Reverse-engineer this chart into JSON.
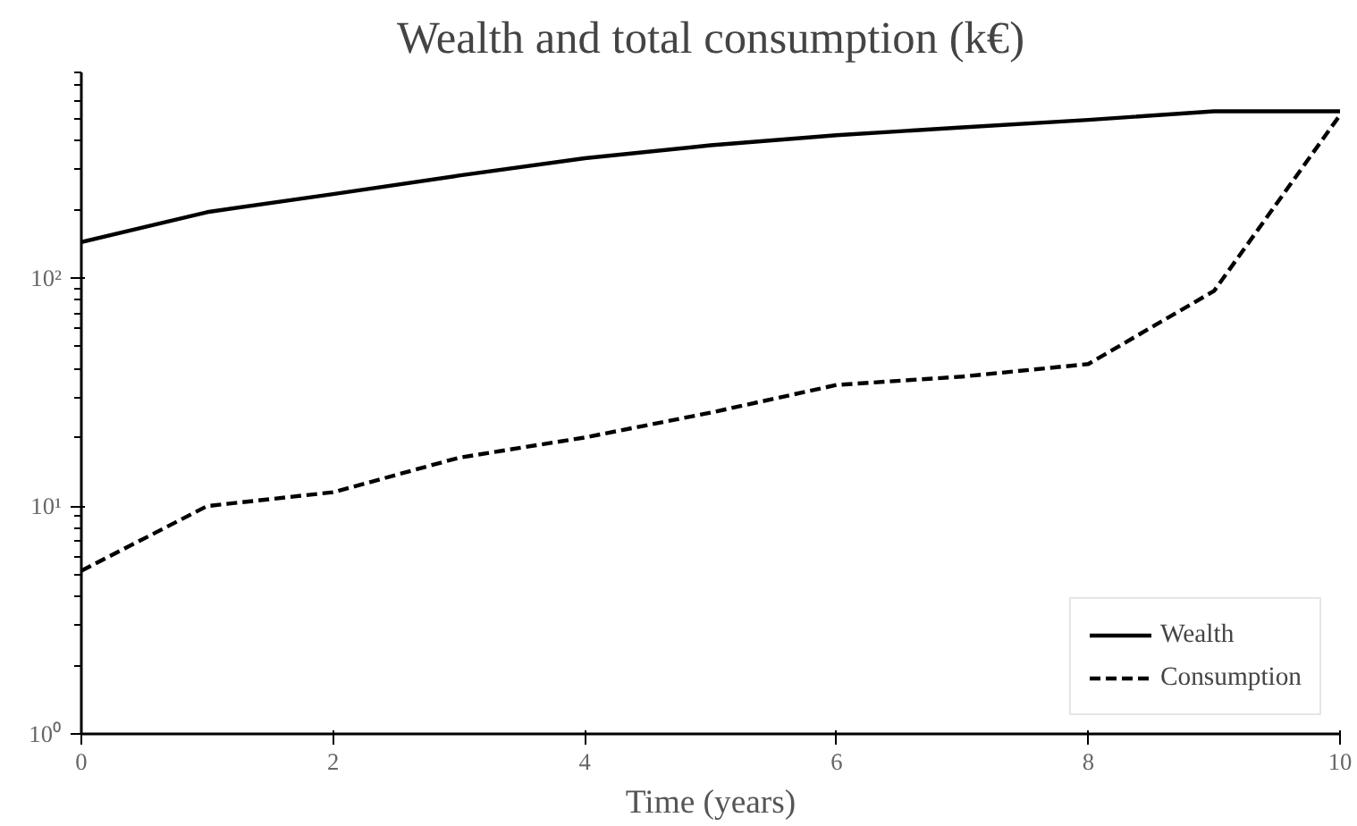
{
  "chart_data": {
    "type": "line",
    "title": "Wealth and total consumption (k€)",
    "xlabel": "Time (years)",
    "x": [
      0,
      1,
      2,
      3,
      4,
      5,
      6,
      7,
      8,
      9,
      10
    ],
    "series": [
      {
        "name": "Wealth",
        "color": "#000000",
        "line_style": "solid",
        "values": [
          144,
          195,
          234,
          282,
          336,
          383,
          424,
          459,
          495,
          540,
          540
        ]
      },
      {
        "name": "Consumption",
        "color": "#000000",
        "line_style": "dashed",
        "values": [
          5.2,
          10,
          11.5,
          16.3,
          20,
          25.7,
          34,
          37,
          42,
          88,
          520
        ]
      }
    ],
    "log": "y",
    "xlim": [
      0,
      10
    ],
    "ylim": [
      1,
      800
    ],
    "xticks": [
      0,
      2,
      4,
      6,
      8,
      10
    ],
    "yticks": [
      {
        "value": 1,
        "label": "10⁰"
      },
      {
        "value": 10,
        "label": "10¹"
      },
      {
        "value": 100,
        "label": "10²"
      }
    ],
    "grid": false,
    "legend": "bottom right",
    "marker": "none"
  }
}
